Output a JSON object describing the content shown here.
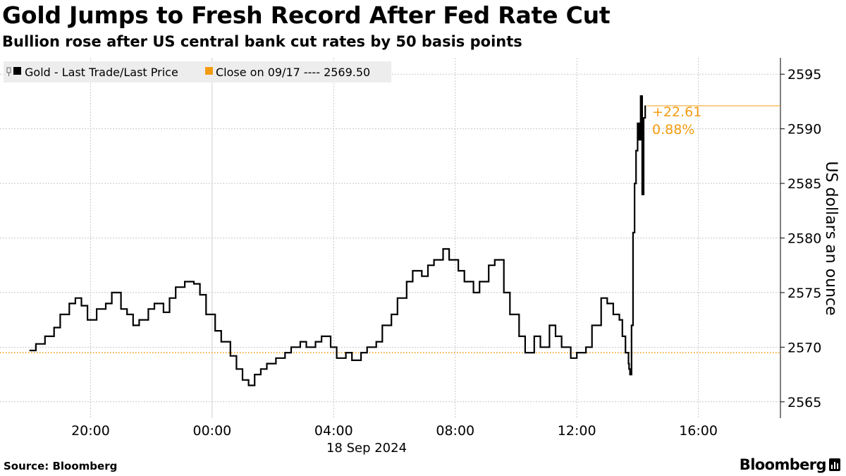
{
  "header": {
    "title": "Gold Jumps to Fresh Record After Fed Rate Cut",
    "subtitle": "Bullion rose after US central bank cut rates by 50 basis points"
  },
  "footer": {
    "source": "Source: Bloomberg",
    "brand": "Bloomberg"
  },
  "chart_data": {
    "type": "line",
    "title": "Gold Jumps to Fresh Record After Fed Rate Cut",
    "subtitle": "Bullion rose after US central bank cut rates by 50 basis points",
    "xlabel": "18 Sep 2024",
    "ylabel": "US dollars an ounce",
    "x_unit": "hours relative to 00:00, 18 Sep 2024",
    "xlim": [
      -6.98,
      18.7
    ],
    "ylim": [
      2563.5,
      2596.5
    ],
    "x_ticks": [
      {
        "x": -4,
        "label": "20:00"
      },
      {
        "x": 0,
        "label": "00:00"
      },
      {
        "x": 4,
        "label": "04:00"
      },
      {
        "x": 8,
        "label": "08:00"
      },
      {
        "x": 12,
        "label": "12:00"
      },
      {
        "x": 16,
        "label": "16:00"
      }
    ],
    "y_ticks": [
      2565,
      2570,
      2575,
      2580,
      2585,
      2590,
      2595
    ],
    "date_label": "18 Sep 2024",
    "grid": true,
    "legend_position": "top-left",
    "legend": [
      {
        "label": "Gold - Last Trade/Last Price",
        "color": "#000000"
      },
      {
        "label": "Close on 09/17 ---- 2569.50",
        "color": "#f39c12"
      }
    ],
    "series": [
      {
        "name": "Gold - Last Trade/Last Price",
        "color": "#000000",
        "x": [
          -6.0,
          -5.8,
          -5.5,
          -5.2,
          -5.0,
          -4.7,
          -4.5,
          -4.3,
          -4.1,
          -3.8,
          -3.5,
          -3.3,
          -3.0,
          -2.8,
          -2.6,
          -2.4,
          -2.1,
          -1.9,
          -1.6,
          -1.4,
          -1.2,
          -0.9,
          -0.6,
          -0.4,
          -0.2,
          0.1,
          0.3,
          0.6,
          0.8,
          1.0,
          1.2,
          1.4,
          1.6,
          1.8,
          2.1,
          2.4,
          2.6,
          2.9,
          3.1,
          3.4,
          3.6,
          3.9,
          4.1,
          4.4,
          4.6,
          4.9,
          5.1,
          5.4,
          5.6,
          5.9,
          6.1,
          6.4,
          6.6,
          6.9,
          7.1,
          7.3,
          7.6,
          7.8,
          8.1,
          8.3,
          8.6,
          8.8,
          9.1,
          9.3,
          9.6,
          9.8,
          10.1,
          10.3,
          10.6,
          10.8,
          11.1,
          11.3,
          11.5,
          11.8,
          12.0,
          12.3,
          12.5,
          12.8,
          13.0,
          13.2,
          13.4,
          13.5,
          13.6,
          13.7,
          13.72,
          13.75,
          13.8,
          13.85,
          13.9,
          13.95,
          14.0,
          14.05,
          14.1,
          14.15,
          14.2,
          14.25
        ],
        "values": [
          2569.7,
          2570.3,
          2571.0,
          2571.8,
          2573.0,
          2574.0,
          2574.5,
          2573.8,
          2572.5,
          2573.5,
          2574.0,
          2575.0,
          2573.5,
          2573.0,
          2572.0,
          2572.5,
          2573.5,
          2574.0,
          2573.2,
          2574.5,
          2575.5,
          2576.0,
          2575.8,
          2574.8,
          2573.0,
          2571.5,
          2570.5,
          2569.2,
          2568.0,
          2567.0,
          2566.5,
          2567.5,
          2568.0,
          2568.5,
          2569.0,
          2569.5,
          2570.0,
          2570.5,
          2570.0,
          2570.5,
          2571.0,
          2570.0,
          2569.0,
          2569.5,
          2568.8,
          2569.5,
          2570.0,
          2570.5,
          2572.0,
          2573.0,
          2574.5,
          2576.0,
          2577.0,
          2576.5,
          2577.5,
          2578.0,
          2579.0,
          2578.0,
          2577.0,
          2576.0,
          2575.0,
          2576.0,
          2577.5,
          2578.0,
          2575.0,
          2573.0,
          2571.0,
          2569.5,
          2571.0,
          2570.0,
          2572.0,
          2571.0,
          2570.0,
          2569.0,
          2569.5,
          2570.0,
          2572.0,
          2574.5,
          2574.0,
          2573.0,
          2572.5,
          2571.0,
          2569.5,
          2568.5,
          2568.0,
          2567.5,
          2572.0,
          2580.5,
          2585.0,
          2588.0,
          2590.5,
          2589.0,
          2593.0,
          2584.0,
          2591.0,
          2592.11
        ]
      },
      {
        "name": "Close on 09/17",
        "color": "#f39c12",
        "style": "dotted",
        "value": 2569.5
      }
    ],
    "annotations": [
      {
        "text": "+22.61",
        "color": "#f39c12"
      },
      {
        "text": "0.88%",
        "color": "#f39c12"
      }
    ],
    "last_value_line": {
      "value": 2592.11,
      "color": "#f39c12"
    }
  }
}
